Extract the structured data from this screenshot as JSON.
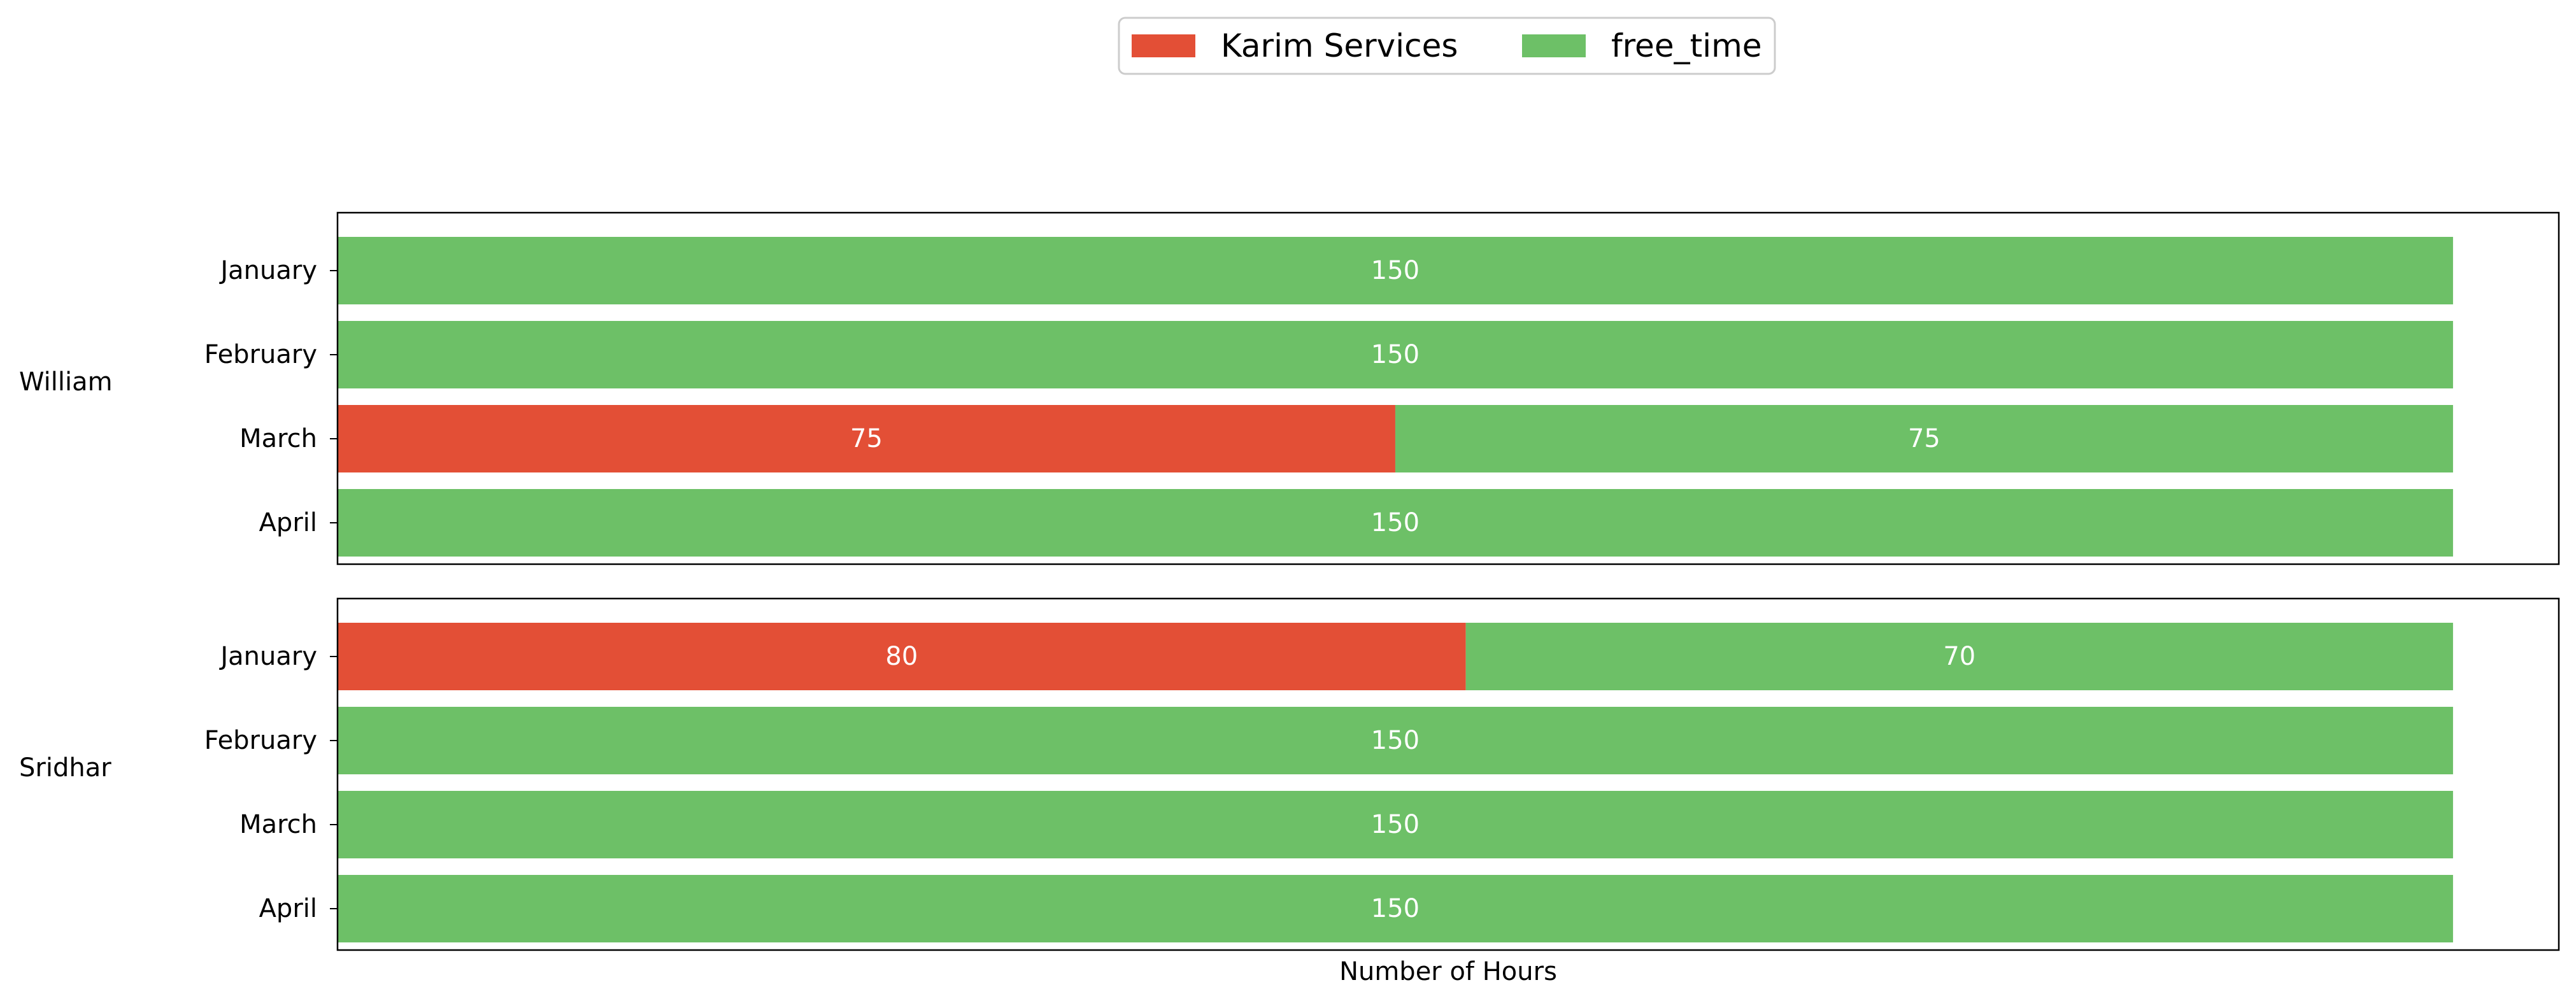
{
  "chart_data": {
    "type": "bar",
    "orientation": "horizontal",
    "stacked": true,
    "title": "",
    "xlabel": "Number of Hours",
    "ylabel": "",
    "xlim": [
      0,
      157.5
    ],
    "x_ticks_visible": false,
    "grid": false,
    "legend": {
      "placement": "top-center",
      "columns": 2,
      "entries": [
        "Karim Services",
        "free_time"
      ]
    },
    "colors": {
      "Karim Services": "#e34f36",
      "free_time": "#6dc067"
    },
    "panels": [
      {
        "group": "William",
        "categories": [
          "January",
          "February",
          "March",
          "April"
        ],
        "series": [
          {
            "name": "Karim Services",
            "values": [
              0,
              0,
              75,
              0
            ],
            "labels": [
              "",
              "",
              "75",
              ""
            ]
          },
          {
            "name": "free_time",
            "values": [
              150,
              150,
              75,
              150
            ],
            "labels": [
              "150",
              "150",
              "75",
              "150"
            ]
          }
        ]
      },
      {
        "group": "Sridhar",
        "categories": [
          "January",
          "February",
          "March",
          "April"
        ],
        "series": [
          {
            "name": "Karim Services",
            "values": [
              80,
              0,
              0,
              0
            ],
            "labels": [
              "80",
              "",
              "",
              ""
            ]
          },
          {
            "name": "free_time",
            "values": [
              70,
              150,
              150,
              150
            ],
            "labels": [
              "70",
              "150",
              "150",
              "150"
            ]
          }
        ]
      }
    ]
  }
}
